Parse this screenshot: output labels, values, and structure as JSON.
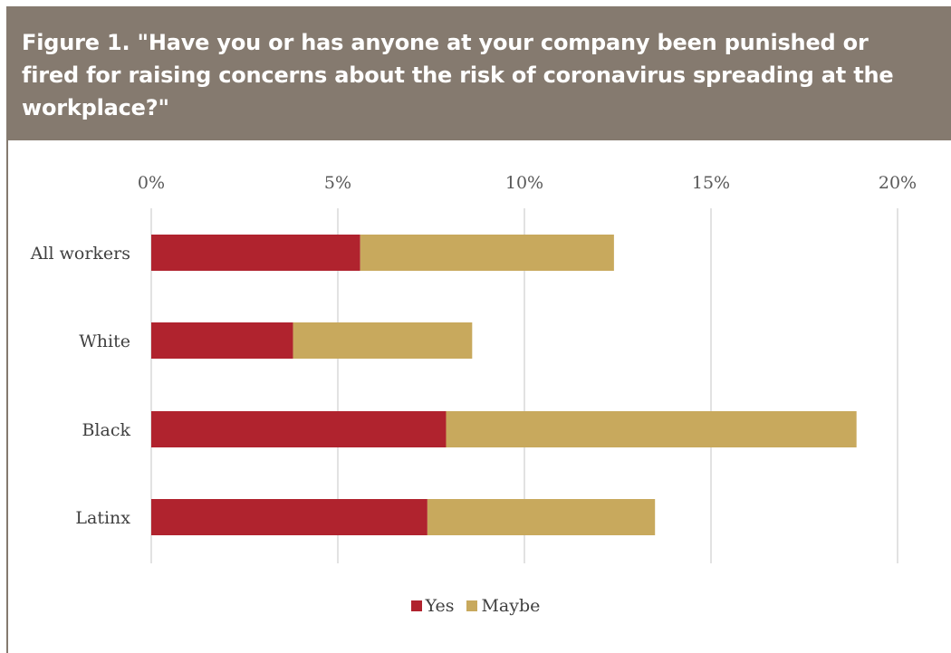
{
  "header": {
    "title": "Figure 1. \"Have you or has anyone at your company been punished or fired for raising concerns about the risk of coronavirus spreading at the workplace?\""
  },
  "chart_data": {
    "type": "bar",
    "orientation": "horizontal",
    "stacked": true,
    "title": "Figure 1. \"Have you or has anyone at your company been punished or fired for raising concerns about the risk of coronavirus spreading at the workplace?\"",
    "xlabel": "",
    "ylabel": "",
    "categories": [
      "All workers",
      "White",
      "Black",
      "Latinx"
    ],
    "series": [
      {
        "name": "Yes",
        "color": "#b0232e",
        "values": [
          5.6,
          3.8,
          7.9,
          7.4
        ]
      },
      {
        "name": "Maybe",
        "color": "#c8a95d",
        "values": [
          6.8,
          4.8,
          11.0,
          6.1
        ]
      }
    ],
    "xlim": [
      0,
      20
    ],
    "ticks": [
      0,
      5,
      10,
      15,
      20
    ],
    "tick_labels": [
      "0%",
      "5%",
      "10%",
      "15%",
      "20%"
    ],
    "axis_position": "top",
    "grid": true,
    "legend_position": "bottom"
  }
}
